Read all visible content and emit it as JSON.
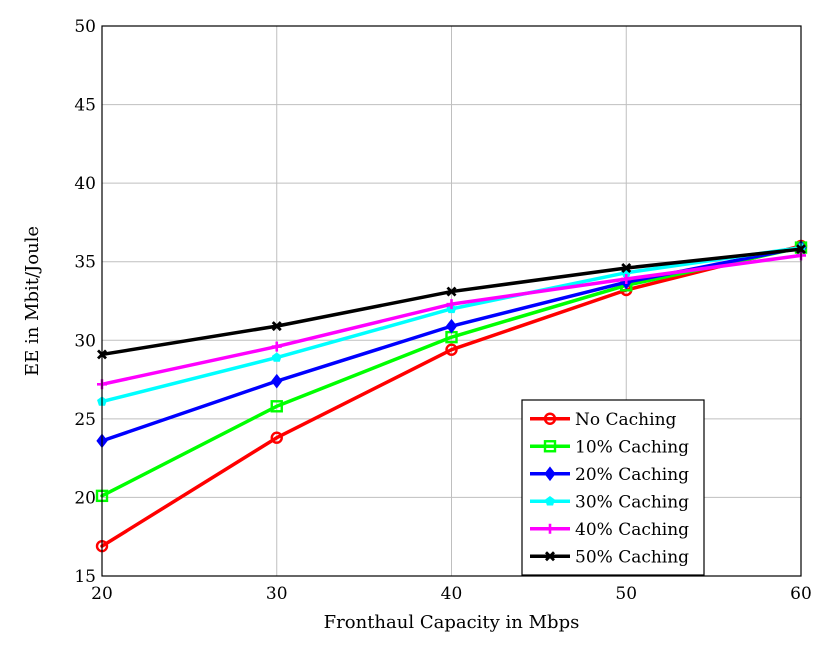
{
  "chart_data": {
    "type": "line",
    "title": "",
    "xlabel": "Fronthaul Capacity in Mbps",
    "ylabel": "EE in Mbit/Joule",
    "xlim": [
      20,
      60
    ],
    "ylim": [
      15,
      50
    ],
    "xticks": [
      20,
      30,
      40,
      50,
      60
    ],
    "yticks": [
      15,
      20,
      25,
      30,
      35,
      40,
      45,
      50
    ],
    "grid": true,
    "legend_position": "bottom-right",
    "x": [
      20,
      30,
      40,
      50,
      60
    ],
    "series": [
      {
        "name": "No Caching",
        "color": "#ff0000",
        "marker": "circle",
        "values": [
          16.9,
          23.8,
          29.4,
          33.2,
          36.0
        ]
      },
      {
        "name": "10% Caching",
        "color": "#00ff00",
        "marker": "square",
        "values": [
          20.1,
          25.8,
          30.2,
          33.5,
          35.9
        ]
      },
      {
        "name": "20% Caching",
        "color": "#0000ff",
        "marker": "diamond",
        "values": [
          23.6,
          27.4,
          30.9,
          33.7,
          35.9
        ]
      },
      {
        "name": "30% Caching",
        "color": "#00ffff",
        "marker": "pentagon",
        "values": [
          26.1,
          28.9,
          32.0,
          34.3,
          35.9
        ]
      },
      {
        "name": "40% Caching",
        "color": "#ff00ff",
        "marker": "plus",
        "values": [
          27.2,
          29.6,
          32.3,
          33.9,
          35.4
        ]
      },
      {
        "name": "50% Caching",
        "color": "#000000",
        "marker": "cross",
        "values": [
          29.1,
          30.9,
          33.1,
          34.6,
          35.8
        ]
      }
    ]
  }
}
